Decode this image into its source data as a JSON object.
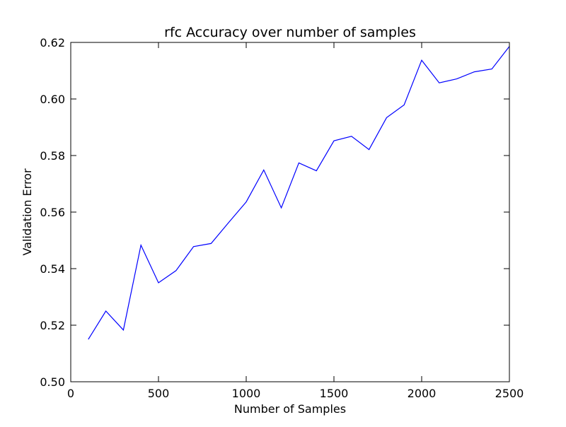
{
  "chart_data": {
    "type": "line",
    "title": "rfc Accuracy over number of samples",
    "xlabel": "Number of Samples",
    "ylabel": "Validation Error",
    "xlim": [
      0,
      2500
    ],
    "ylim": [
      0.5,
      0.62
    ],
    "x_ticks": [
      0,
      500,
      1000,
      1500,
      2000,
      2500
    ],
    "y_ticks": [
      0.5,
      0.52,
      0.54,
      0.56,
      0.58,
      0.6,
      0.62
    ],
    "y_tick_labels": [
      "0.50",
      "0.52",
      "0.54",
      "0.56",
      "0.58",
      "0.60",
      "0.62"
    ],
    "grid": false,
    "legend": "none",
    "series": [
      {
        "color": "#0000ff",
        "x": [
          100,
          200,
          300,
          400,
          500,
          600,
          700,
          800,
          900,
          1000,
          1100,
          1200,
          1300,
          1400,
          1500,
          1600,
          1700,
          1800,
          1900,
          2000,
          2100,
          2200,
          2300,
          2400,
          2500
        ],
        "y": [
          0.515,
          0.525,
          0.5183,
          0.5483,
          0.535,
          0.5393,
          0.5478,
          0.5489,
          0.5563,
          0.5636,
          0.5749,
          0.5615,
          0.5774,
          0.5746,
          0.5852,
          0.5868,
          0.5821,
          0.5934,
          0.5979,
          0.6137,
          0.6057,
          0.6071,
          0.6096,
          0.6106,
          0.6186
        ]
      }
    ]
  }
}
